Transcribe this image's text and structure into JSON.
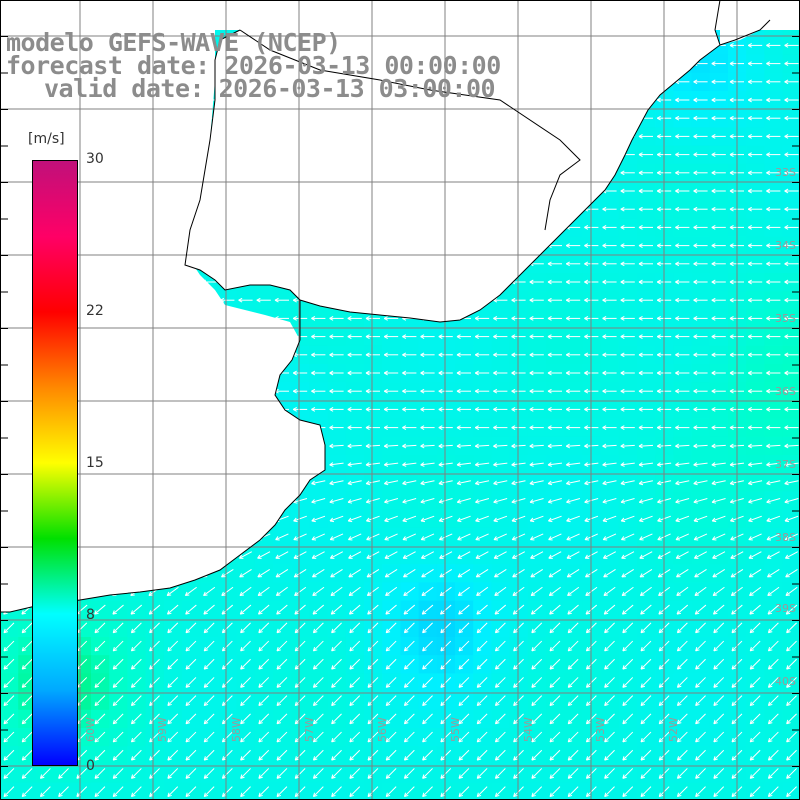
{
  "header": {
    "line1": "modelo GEFS-WAVE (NCEP)",
    "line2": "forecast date: 2026-03-13 00:00:00",
    "line3": "valid date: 2026-03-13 03:00:00"
  },
  "colorbar": {
    "unit": "[m/s]",
    "min": 0,
    "max": 30,
    "ticks": [
      "30",
      "22",
      "15",
      "8",
      "0"
    ],
    "colors": [
      "#0000ff",
      "#00aaff",
      "#00ffff",
      "#00e000",
      "#ffff00",
      "#ff8800",
      "#ff0000",
      "#ff0066",
      "#c0107a"
    ]
  },
  "map": {
    "lat_labels": [
      "33S",
      "34S",
      "35S",
      "36S",
      "37S",
      "38S",
      "39S",
      "40S"
    ],
    "lon_labels": [
      "60W",
      "59W",
      "58W",
      "57W",
      "56W",
      "55W",
      "54W",
      "53W",
      "52W"
    ],
    "ocean_field": "wind speed ~8-13 m/s, mostly 9-10 m/s; direction from NE/E turning to NE-SW flow in south",
    "land_color": "#ffffff",
    "grid_color": "#808080",
    "coast_color": "#000000"
  }
}
